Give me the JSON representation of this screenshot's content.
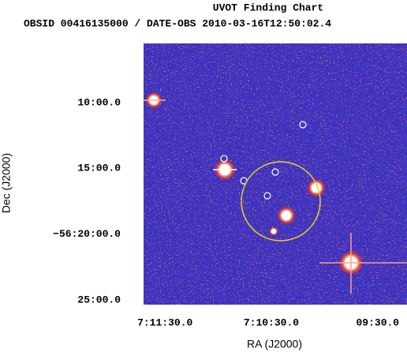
{
  "chart_data": {
    "type": "image",
    "title": "UVOT Finding Chart",
    "subtitle": "OBSID 00416135000 / DATE-OBS 2010-03-16T12:50:02.4",
    "x_label": "RA (J2000)",
    "y_label": "Dec (J2000)",
    "xlim": [
      107.9254,
      107.306
    ],
    "ylim": [
      -56.4228,
      -56.0917
    ],
    "xticks": [
      {
        "value": 107.875,
        "label": "7:11:30.0"
      },
      {
        "value": 107.625,
        "label": "7:10:30.0"
      },
      {
        "value": 107.375,
        "label": "09:30.0"
      }
    ],
    "yticks": [
      {
        "value": -56.16667,
        "label": "10:00.0"
      },
      {
        "value": -56.25,
        "label": "15:00.0"
      },
      {
        "value": -56.33333,
        "label": "−56:20:00.0"
      },
      {
        "value": -56.41667,
        "label": "25:00.0"
      }
    ]
  }
}
